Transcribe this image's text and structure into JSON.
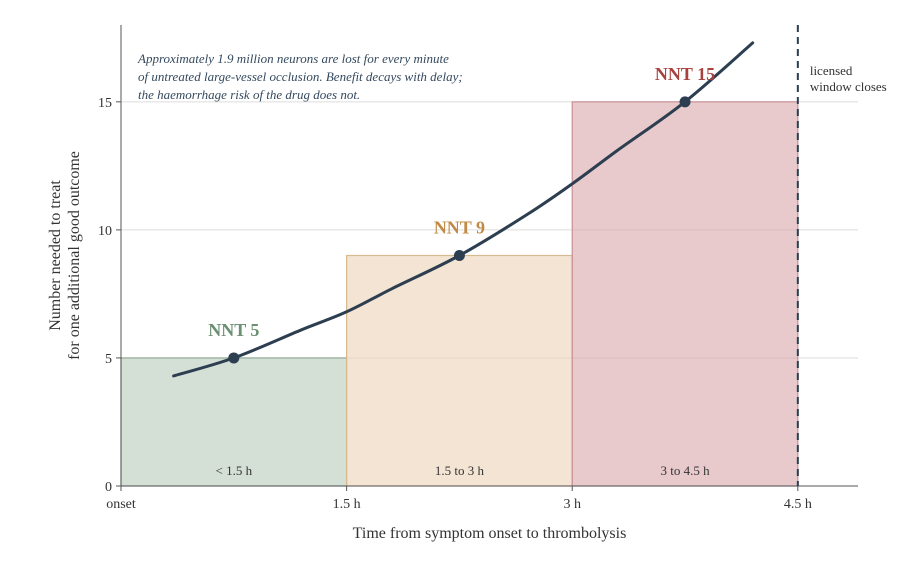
{
  "chart_data": {
    "type": "bar",
    "xlabel": "Time from symptom onset to thrombolysis",
    "ylabel": [
      "Number needed to treat",
      "for one additional good outcome"
    ],
    "xlim": [
      0,
      4.9
    ],
    "ylim": [
      0,
      18
    ],
    "x_ticks": [
      {
        "value": 0,
        "label": "onset"
      },
      {
        "value": 1.5,
        "label": "1.5 h"
      },
      {
        "value": 3,
        "label": "3 h"
      },
      {
        "value": 4.5,
        "label": "4.5 h"
      }
    ],
    "y_ticks": [
      0,
      5,
      10,
      15
    ],
    "grid": "horizontal",
    "bars": [
      {
        "x_start": 0,
        "x_end": 1.5,
        "value": 5,
        "band_label": "< 1.5 h",
        "nnt_label": "NNT 5",
        "fill": "#b7c9bb",
        "edge": "#8fa897",
        "text_color": "#6b8f71"
      },
      {
        "x_start": 1.5,
        "x_end": 3,
        "value": 9,
        "band_label": "1.5 to 3 h",
        "nnt_label": "NNT 9",
        "fill": "#ebd2b5",
        "edge": "#d9b98f",
        "text_color": "#c08a45"
      },
      {
        "x_start": 3,
        "x_end": 4.5,
        "value": 15,
        "band_label": "3 to 4.5 h",
        "nnt_label": "NNT 15",
        "fill": "#d9a7ac",
        "edge": "#c99096",
        "text_color": "#a8423e"
      }
    ],
    "curve": {
      "color": "#2c3e50",
      "x": [
        0.35,
        0.75,
        1.2,
        1.5,
        1.8,
        2.25,
        2.7,
        3.0,
        3.3,
        3.75,
        4.2
      ],
      "y": [
        4.3,
        5.0,
        6.1,
        6.8,
        7.7,
        9.0,
        10.6,
        11.8,
        13.1,
        15.0,
        17.3
      ]
    },
    "points": [
      {
        "x": 0.75,
        "y": 5
      },
      {
        "x": 2.25,
        "y": 9
      },
      {
        "x": 3.75,
        "y": 15
      }
    ],
    "annotation": [
      "Approximately 1.9 million neurons are lost for every minute",
      "of untreated large-vessel occlusion. Benefit decays with delay;",
      "the haemorrhage risk of the drug does not."
    ],
    "vline": {
      "x": 4.5,
      "label": [
        "licensed",
        "window closes"
      ],
      "style": "dashed",
      "color": "#2c3e50"
    }
  }
}
